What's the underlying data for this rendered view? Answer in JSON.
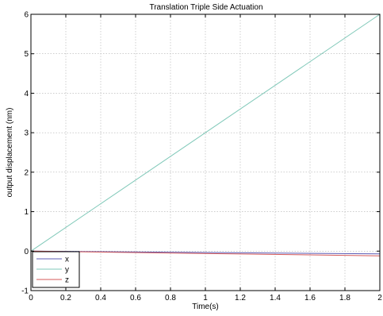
{
  "chart_data": {
    "type": "line",
    "title": "Translation Triple Side Actuation",
    "xlabel": "Time(s)",
    "ylabel": "output displacement (nm)",
    "xlim": [
      0,
      2
    ],
    "ylim": [
      -1,
      6
    ],
    "xticks": [
      0,
      0.2,
      0.4,
      0.6,
      0.8,
      1,
      1.2,
      1.4,
      1.6,
      1.8,
      2
    ],
    "xtick_labels": [
      "0",
      "0.2",
      "0.4",
      "0.6",
      "0.8",
      "1",
      "1.2",
      "1.4",
      "1.6",
      "1.8",
      "2"
    ],
    "yticks": [
      -1,
      0,
      1,
      2,
      3,
      4,
      5,
      6
    ],
    "ytick_labels": [
      "-1",
      "0",
      "1",
      "2",
      "3",
      "4",
      "5",
      "6"
    ],
    "grid": true,
    "legend_position": "bottom-left",
    "series": [
      {
        "name": "x",
        "color": "#5b5bb5",
        "x": [
          0,
          2
        ],
        "y": [
          0,
          -0.07
        ]
      },
      {
        "name": "y",
        "color": "#7fc8b8",
        "x": [
          0,
          2
        ],
        "y": [
          0,
          6
        ]
      },
      {
        "name": "z",
        "color": "#d45a5a",
        "x": [
          0,
          2
        ],
        "y": [
          0,
          -0.12
        ]
      }
    ]
  }
}
